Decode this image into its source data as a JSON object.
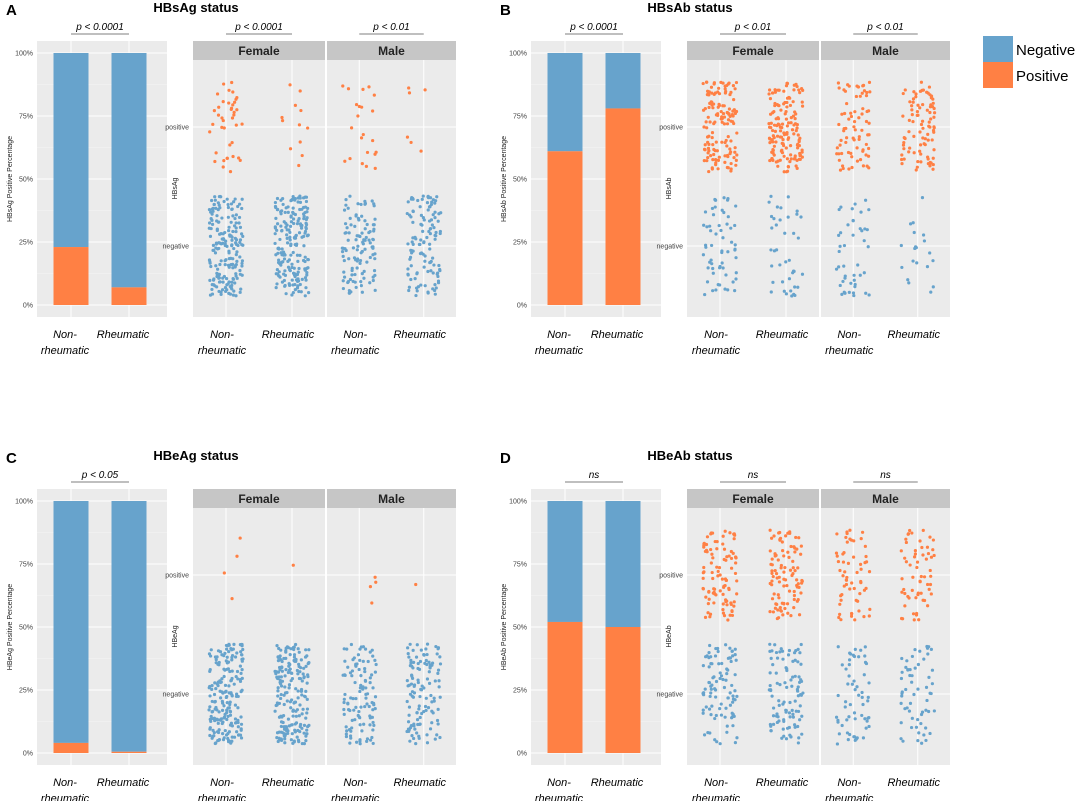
{
  "colors": {
    "negative": "#67a3cc",
    "positive": "#ff8044",
    "panel_bg": "#ebebeb",
    "strip_bg": "#c6c6c6",
    "grid": "#ffffff"
  },
  "legend": {
    "items": [
      {
        "label": "Negative",
        "color": "#67a3cc"
      },
      {
        "label": "Positive",
        "color": "#ff8044"
      }
    ]
  },
  "panels": [
    {
      "letter": "A",
      "title": "HBsAg status",
      "ylabel": "HBsAg Positive Percentage",
      "jitter_ylabel": "HBsAg",
      "bar_pval": "p < 0.0001",
      "female_pval": "p < 0.0001",
      "male_pval": "p < 0.01"
    },
    {
      "letter": "B",
      "title": "HBsAb status",
      "ylabel": "HBsAb Positive Percentage",
      "jitter_ylabel": "HBsAb",
      "bar_pval": "p < 0.0001",
      "female_pval": "p < 0.01",
      "male_pval": "p < 0.01"
    },
    {
      "letter": "C",
      "title": "HBeAg status",
      "ylabel": "HBeAg Positive Percentage",
      "jitter_ylabel": "HBeAg",
      "bar_pval": "p < 0.05",
      "female_pval": "",
      "male_pval": ""
    },
    {
      "letter": "D",
      "title": "HBeAb status",
      "ylabel": "HBeAb Positive Percentage",
      "jitter_ylabel": "HBeAb",
      "bar_pval": "ns",
      "female_pval": "ns",
      "male_pval": "ns"
    }
  ],
  "chart_data": [
    {
      "panel": "A",
      "type": "bar",
      "title": "HBsAg status",
      "stacked": true,
      "ylabel": "HBsAg Positive Percentage",
      "yticks": [
        "0%",
        "25%",
        "50%",
        "75%",
        "100%"
      ],
      "ylim": [
        0,
        100
      ],
      "categories": [
        "Non-\nrheumatic",
        "Rheumatic"
      ],
      "series": [
        {
          "name": "Positive",
          "values": [
            23,
            7
          ]
        },
        {
          "name": "Negative",
          "values": [
            77,
            93
          ]
        }
      ]
    },
    {
      "panel": "A",
      "type": "scatter",
      "ylabel": "HBsAg",
      "ycategories": [
        "negative",
        "positive"
      ],
      "facets": [
        "Female",
        "Male"
      ],
      "xcategories": [
        "Non-\nrheumatic",
        "Rheumatic"
      ],
      "approx_counts": {
        "Female": {
          "Non-\nrheumatic": {
            "positive": 40,
            "negative": 190
          },
          "Rheumatic": {
            "positive": 12,
            "negative": 200
          }
        },
        "Male": {
          "Non-\nrheumatic": {
            "positive": 22,
            "negative": 110
          },
          "Rheumatic": {
            "positive": 6,
            "negative": 120
          }
        }
      }
    },
    {
      "panel": "B",
      "type": "bar",
      "title": "HBsAb status",
      "stacked": true,
      "ylabel": "HBsAb Positive Percentage",
      "yticks": [
        "0%",
        "25%",
        "50%",
        "75%",
        "100%"
      ],
      "ylim": [
        0,
        100
      ],
      "categories": [
        "Non-\nrheumatic",
        "Rheumatic"
      ],
      "series": [
        {
          "name": "Positive",
          "values": [
            61,
            78
          ]
        },
        {
          "name": "Negative",
          "values": [
            39,
            22
          ]
        }
      ]
    },
    {
      "panel": "B",
      "type": "scatter",
      "ylabel": "HBsAb",
      "ycategories": [
        "negative",
        "positive"
      ],
      "facets": [
        "Female",
        "Male"
      ],
      "xcategories": [
        "Non-\nrheumatic",
        "Rheumatic"
      ],
      "approx_counts": {
        "Female": {
          "Non-\nrheumatic": {
            "positive": 140,
            "negative": 60
          },
          "Rheumatic": {
            "positive": 150,
            "negative": 40
          }
        },
        "Male": {
          "Non-\nrheumatic": {
            "positive": 75,
            "negative": 45
          },
          "Rheumatic": {
            "positive": 90,
            "negative": 20
          }
        }
      }
    },
    {
      "panel": "C",
      "type": "bar",
      "title": "HBeAg status",
      "stacked": true,
      "ylabel": "HBeAg Positive Percentage",
      "yticks": [
        "0%",
        "25%",
        "50%",
        "75%",
        "100%"
      ],
      "ylim": [
        0,
        100
      ],
      "categories": [
        "Non-\nrheumatic",
        "Rheumatic"
      ],
      "series": [
        {
          "name": "Positive",
          "values": [
            4,
            0.5
          ]
        },
        {
          "name": "Negative",
          "values": [
            96,
            99.5
          ]
        }
      ]
    },
    {
      "panel": "C",
      "type": "scatter",
      "ylabel": "HBeAg",
      "ycategories": [
        "negative",
        "positive"
      ],
      "facets": [
        "Female",
        "Male"
      ],
      "xcategories": [
        "Non-\nrheumatic",
        "Rheumatic"
      ],
      "approx_counts": {
        "Female": {
          "Non-\nrheumatic": {
            "positive": 4,
            "negative": 200
          },
          "Rheumatic": {
            "positive": 1,
            "negative": 200
          }
        },
        "Male": {
          "Non-\nrheumatic": {
            "positive": 4,
            "negative": 110
          },
          "Rheumatic": {
            "positive": 1,
            "negative": 120
          }
        }
      }
    },
    {
      "panel": "D",
      "type": "bar",
      "title": "HBeAb status",
      "stacked": true,
      "ylabel": "HBeAb Positive Percentage",
      "yticks": [
        "0%",
        "25%",
        "50%",
        "75%",
        "100%"
      ],
      "ylim": [
        0,
        100
      ],
      "categories": [
        "Non-\nrheumatic",
        "Rheumatic"
      ],
      "series": [
        {
          "name": "Positive",
          "values": [
            52,
            50
          ]
        },
        {
          "name": "Negative",
          "values": [
            48,
            50
          ]
        }
      ]
    },
    {
      "panel": "D",
      "type": "scatter",
      "ylabel": "HBeAb",
      "ycategories": [
        "negative",
        "positive"
      ],
      "facets": [
        "Female",
        "Male"
      ],
      "xcategories": [
        "Non-\nrheumatic",
        "Rheumatic"
      ],
      "approx_counts": {
        "Female": {
          "Non-\nrheumatic": {
            "positive": 100,
            "negative": 95
          },
          "Rheumatic": {
            "positive": 100,
            "negative": 100
          }
        },
        "Male": {
          "Non-\nrheumatic": {
            "positive": 60,
            "negative": 60
          },
          "Rheumatic": {
            "positive": 60,
            "negative": 60
          }
        }
      }
    }
  ]
}
